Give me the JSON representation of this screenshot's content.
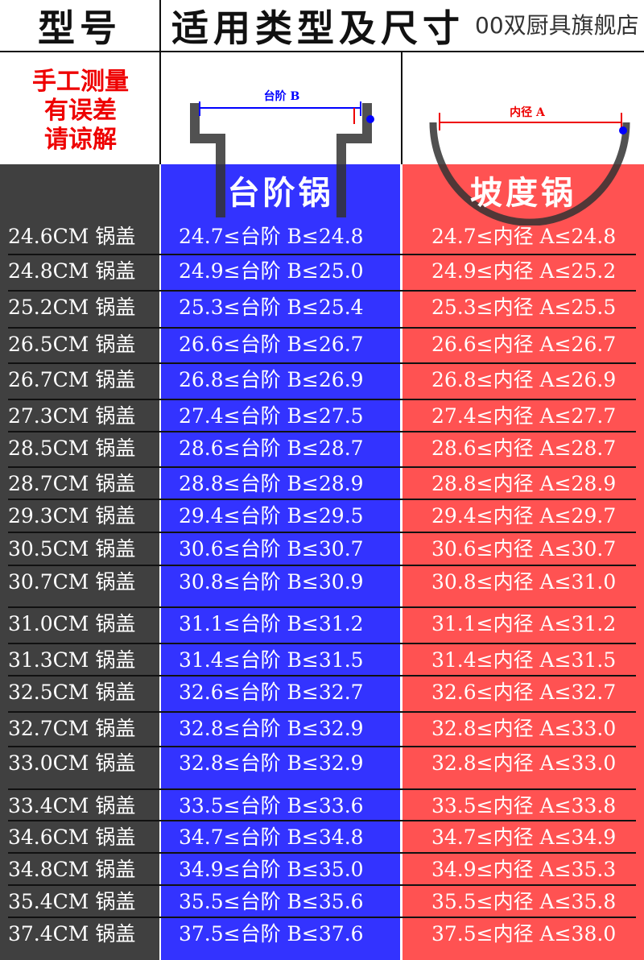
{
  "header": {
    "model": "型号",
    "type_size": "适用类型及尺寸",
    "watermark": "00双厨具旗舰店"
  },
  "note": [
    "手工测量",
    "有误差",
    "请谅解"
  ],
  "diagrams": {
    "step_label": "台阶 B",
    "slope_label": "内径 A"
  },
  "columns": {
    "step_pot": "台阶锅",
    "slope_pot": "坡度锅"
  },
  "colors": {
    "left": "#404040",
    "step": "#3333ff",
    "slope": "#ff5252"
  },
  "rows": [
    {
      "lid": "24.6CM 锅盖",
      "step": "24.7≤台阶 B≤24.8",
      "slope": "24.7≤内径 A≤24.8"
    },
    {
      "lid": "24.8CM 锅盖",
      "step": "24.9≤台阶 B≤25.0",
      "slope": "24.9≤内径 A≤25.2"
    },
    {
      "lid": "25.2CM 锅盖",
      "step": "25.3≤台阶 B≤25.4",
      "slope": "25.3≤内径 A≤25.5"
    },
    {
      "lid": "26.5CM 锅盖",
      "step": "26.6≤台阶 B≤26.7",
      "slope": "26.6≤内径 A≤26.7"
    },
    {
      "lid": "26.7CM 锅盖",
      "step": "26.8≤台阶 B≤26.9",
      "slope": "26.8≤内径 A≤26.9"
    },
    {
      "lid": "27.3CM 锅盖",
      "step": "27.4≤台阶 B≤27.5",
      "slope": "27.4≤内径 A≤27.7"
    },
    {
      "lid": "28.5CM 锅盖",
      "step": "28.6≤台阶 B≤28.7",
      "slope": "28.6≤内径 A≤28.7"
    },
    {
      "lid": "28.7CM 锅盖",
      "step": "28.8≤台阶 B≤28.9",
      "slope": "28.8≤内径 A≤28.9"
    },
    {
      "lid": "29.3CM 锅盖",
      "step": "29.4≤台阶 B≤29.5",
      "slope": "29.4≤内径 A≤29.7"
    },
    {
      "lid": "30.5CM 锅盖",
      "step": "30.6≤台阶 B≤30.7",
      "slope": "30.6≤内径 A≤30.7"
    },
    {
      "lid": "30.7CM 锅盖",
      "step": "30.8≤台阶 B≤30.9",
      "slope": "30.8≤内径 A≤31.0"
    },
    {
      "lid": "31.0CM 锅盖",
      "step": "31.1≤台阶 B≤31.2",
      "slope": "31.1≤内径 A≤31.2"
    },
    {
      "lid": "31.3CM 锅盖",
      "step": "31.4≤台阶 B≤31.5",
      "slope": "31.4≤内径 A≤31.5"
    },
    {
      "lid": "32.5CM 锅盖",
      "step": "32.6≤台阶 B≤32.7",
      "slope": "32.6≤内径 A≤32.7"
    },
    {
      "lid": "32.7CM 锅盖",
      "step": "32.8≤台阶 B≤32.9",
      "slope": "32.8≤内径 A≤33.0"
    },
    {
      "lid": "33.0CM 锅盖",
      "step": "32.8≤台阶 B≤32.9",
      "slope": "32.8≤内径 A≤33.0"
    },
    {
      "lid": "33.4CM 锅盖",
      "step": "33.5≤台阶 B≤33.6",
      "slope": "33.5≤内径 A≤33.8"
    },
    {
      "lid": "34.6CM 锅盖",
      "step": "34.7≤台阶 B≤34.8",
      "slope": "34.7≤内径 A≤34.9"
    },
    {
      "lid": "34.8CM 锅盖",
      "step": "34.9≤台阶 B≤35.0",
      "slope": "34.9≤内径 A≤35.3"
    },
    {
      "lid": "35.4CM 锅盖",
      "step": "35.5≤台阶 B≤35.6",
      "slope": "35.5≤内径 A≤35.8"
    },
    {
      "lid": "37.4CM 锅盖",
      "step": "37.5≤台阶 B≤37.6",
      "slope": "37.5≤内径 A≤38.0"
    }
  ]
}
